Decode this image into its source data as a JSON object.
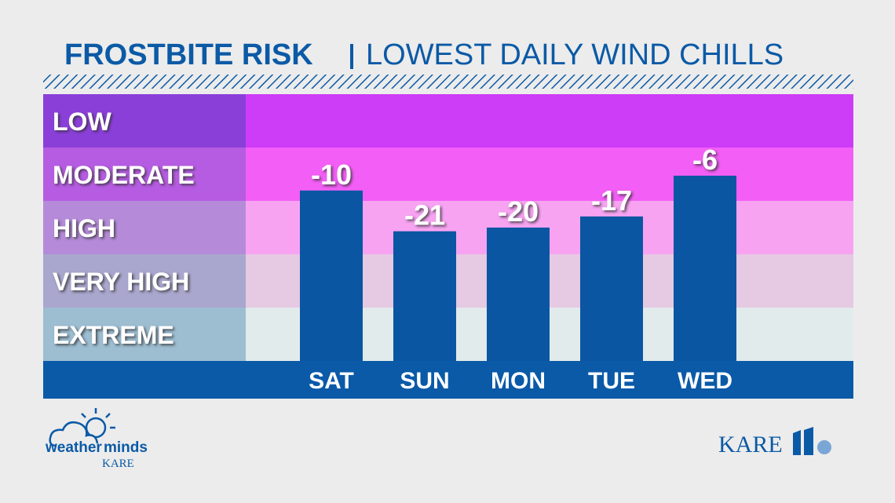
{
  "chart_data": {
    "type": "bar",
    "title": "FROSTBITE RISK",
    "subtitle": "LOWEST DAILY WIND CHILLS",
    "categories": [
      "SAT",
      "SUN",
      "MON",
      "TUE",
      "WED"
    ],
    "values": [
      -10,
      -21,
      -20,
      -17,
      -6
    ],
    "color": "#0a56a2",
    "ylim": [
      -56,
      16
    ],
    "bands": [
      "LOW",
      "MODERATE",
      "HIGH",
      "VERY HIGH",
      "EXTREME"
    ],
    "band_colors": [
      "#cd3cf6",
      "#f35ef6",
      "#f7a3f2",
      "#e6c9e2",
      "#e1ebeb"
    ],
    "band_label_colors": [
      "#8b3fd9",
      "#b65ce2",
      "#b58bd9",
      "#a9a7cd",
      "#9dbdd1"
    ],
    "axis_color": "#0a5aa8"
  },
  "branding": {
    "left_word1": "weather",
    "left_word2": "minds",
    "left_station": "KARE",
    "right_station": "KARE"
  }
}
